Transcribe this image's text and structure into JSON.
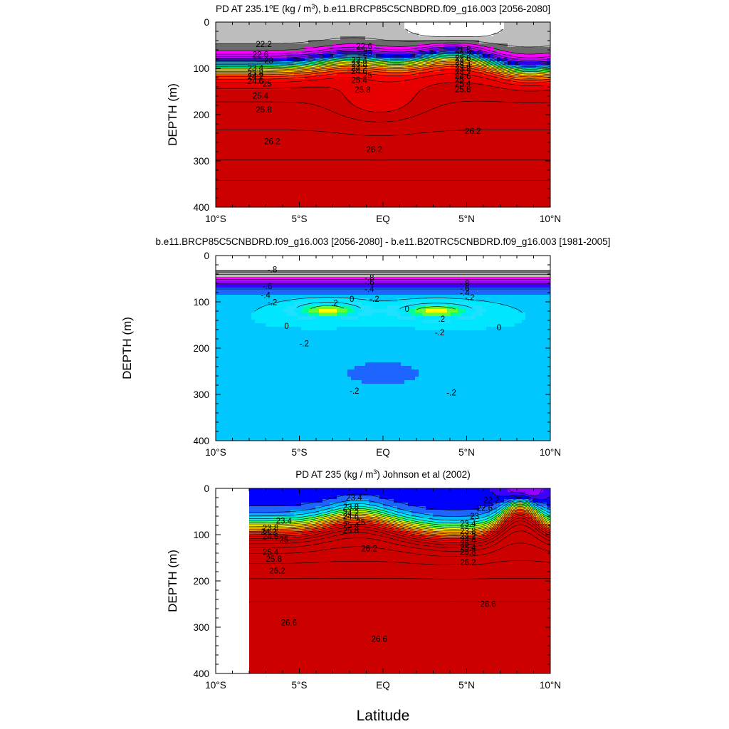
{
  "figure": {
    "xlabel": "Latitude",
    "x_ticks": [
      -10,
      -5,
      0,
      5,
      10
    ],
    "x_tick_labels": [
      "10°S",
      "5°S",
      "EQ",
      "5°N",
      "10°N"
    ],
    "y_ticks": [
      0,
      100,
      200,
      300,
      400
    ],
    "y_tick_labels": [
      "0",
      "100",
      "200",
      "300",
      "400"
    ]
  },
  "chart_data": [
    {
      "type": "heatmap",
      "subtype": "filled-contour",
      "title_prefix": "PD AT 235.1",
      "title_deg": "o",
      "title_mid": "E (kg / m",
      "title_sup": "3",
      "title_suffix": "), b.e11.BRCP85C5CNBDRD.f09_g16.003 [2056-2080]",
      "xlabel": "",
      "ylabel": "DEPTH (m)",
      "xlim": [
        -10,
        10
      ],
      "ylim": [
        400,
        0
      ],
      "contour_interval": 0.2,
      "field_range": [
        21.4,
        26.8
      ],
      "palette": [
        "#ffffff",
        "#bdbdbd",
        "#6b6b6b",
        "#ff00ff",
        "#cc00ff",
        "#9400ff",
        "#3c00ff",
        "#0000ff",
        "#1e64ff",
        "#00b4ff",
        "#00e6ff",
        "#00ffaa",
        "#46ff46",
        "#b4ff00",
        "#ffff00",
        "#ffd200",
        "#ffaa00",
        "#ff8200",
        "#ff5000",
        "#ff2800",
        "#ff0000",
        "#e60000",
        "#cd0000"
      ],
      "contour_labels": [
        {
          "text": "22.2",
          "lat": -7.6,
          "depth": 48
        },
        {
          "text": "22.6",
          "lat": -7.8,
          "depth": 70
        },
        {
          "text": "23",
          "lat": -7.1,
          "depth": 83
        },
        {
          "text": "23.4",
          "lat": -8.1,
          "depth": 99
        },
        {
          "text": "23.8",
          "lat": -8.1,
          "depth": 110
        },
        {
          "text": "24.2",
          "lat": -8.1,
          "depth": 118
        },
        {
          "text": "24.6",
          "lat": -8.1,
          "depth": 128
        },
        {
          "text": "25",
          "lat": -7.2,
          "depth": 133
        },
        {
          "text": "25.4",
          "lat": -7.8,
          "depth": 159
        },
        {
          "text": "25.8",
          "lat": -7.6,
          "depth": 189
        },
        {
          "text": "26.2",
          "lat": -7.1,
          "depth": 258
        },
        {
          "text": "22.6",
          "lat": -1.6,
          "depth": 52
        },
        {
          "text": "23",
          "lat": -1.2,
          "depth": 67
        },
        {
          "text": "23.4",
          "lat": -1.9,
          "depth": 82
        },
        {
          "text": "23.8",
          "lat": -1.9,
          "depth": 91
        },
        {
          "text": "24.2",
          "lat": -1.9,
          "depth": 99
        },
        {
          "text": "24.6",
          "lat": -1.9,
          "depth": 106
        },
        {
          "text": "25",
          "lat": -1.2,
          "depth": 115
        },
        {
          "text": "25.4",
          "lat": -1.9,
          "depth": 125
        },
        {
          "text": "25.8",
          "lat": -1.7,
          "depth": 146
        },
        {
          "text": "26.2",
          "lat": -1.0,
          "depth": 275
        },
        {
          "text": "21.8",
          "lat": 4.3,
          "depth": 59
        },
        {
          "text": "22.2",
          "lat": 4.3,
          "depth": 71
        },
        {
          "text": "22.6",
          "lat": 4.3,
          "depth": 78
        },
        {
          "text": "23",
          "lat": 4.3,
          "depth": 86
        },
        {
          "text": "23.4",
          "lat": 4.3,
          "depth": 93
        },
        {
          "text": "23.8",
          "lat": 4.3,
          "depth": 101
        },
        {
          "text": "24.2",
          "lat": 4.3,
          "depth": 109
        },
        {
          "text": "24.6",
          "lat": 4.3,
          "depth": 117
        },
        {
          "text": "25",
          "lat": 4.3,
          "depth": 124
        },
        {
          "text": "25.4",
          "lat": 4.3,
          "depth": 133
        },
        {
          "text": "25.8",
          "lat": 4.3,
          "depth": 145
        },
        {
          "text": "26.2",
          "lat": 4.9,
          "depth": 235
        }
      ]
    },
    {
      "type": "heatmap",
      "subtype": "filled-contour-difference",
      "title": "b.e11.BRCP85C5CNBDRD.f09_g16.003 [2056-2080] - b.e11.B20TRC5CNBDRD.f09_g16.003 [1981-2005]",
      "xlabel": "",
      "ylabel": "DEPTH (m)",
      "xlim": [
        -10,
        10
      ],
      "ylim": [
        400,
        0
      ],
      "contour_interval": 0.2,
      "field_range": [
        -1.2,
        0.4
      ],
      "palette": [
        "#00e6ff",
        "#00e6ff",
        "#00ff96",
        "#64ff32",
        "#ffff00",
        "#ffd200",
        "#ff9600"
      ],
      "palette_negative": [
        "#ffffff",
        "#6b6b6b",
        "#bdbdbd",
        "#ff00ff",
        "#cc00ff",
        "#9400ff",
        "#3c00ff",
        "#0000ff",
        "#1e64ff",
        "#00c8ff",
        "#00e6ff",
        "#1ee1ff"
      ],
      "contour_labels": [
        {
          "text": "-.8",
          "lat": -6.9,
          "depth": 30
        },
        {
          "text": "-.6",
          "lat": -7.2,
          "depth": 66
        },
        {
          "text": "-.4",
          "lat": -7.3,
          "depth": 85
        },
        {
          "text": "-.2",
          "lat": -6.9,
          "depth": 101
        },
        {
          "text": "0",
          "lat": -5.9,
          "depth": 152
        },
        {
          "text": ".2",
          "lat": -3.1,
          "depth": 102
        },
        {
          "text": "0",
          "lat": -2.0,
          "depth": 94
        },
        {
          "text": "-.2",
          "lat": -0.8,
          "depth": 94
        },
        {
          "text": "-.8",
          "lat": -1.1,
          "depth": 48
        },
        {
          "text": "-.6",
          "lat": -1.1,
          "depth": 58
        },
        {
          "text": "-.4",
          "lat": -1.1,
          "depth": 72
        },
        {
          "text": "-.2",
          "lat": -5.0,
          "depth": 190
        },
        {
          "text": "-.2",
          "lat": -2.0,
          "depth": 292
        },
        {
          "text": "0",
          "lat": 1.3,
          "depth": 115
        },
        {
          "text": ".2",
          "lat": 3.3,
          "depth": 137
        },
        {
          "text": "0",
          "lat": 6.8,
          "depth": 155
        },
        {
          "text": "-.8",
          "lat": 4.6,
          "depth": 60
        },
        {
          "text": "-.6",
          "lat": 4.6,
          "depth": 71
        },
        {
          "text": "-.4",
          "lat": 4.6,
          "depth": 81
        },
        {
          "text": "-.2",
          "lat": 4.9,
          "depth": 91
        },
        {
          "text": "-.2",
          "lat": 3.1,
          "depth": 166
        },
        {
          "text": "-.2",
          "lat": 3.8,
          "depth": 296
        }
      ]
    },
    {
      "type": "heatmap",
      "subtype": "filled-contour",
      "title_prefix": "PD AT 235 (kg / m",
      "title_sup": "3",
      "title_suffix": ") Johnson et al (2002)",
      "xlabel": "",
      "ylabel": "DEPTH (m)",
      "xlim": [
        -10,
        10
      ],
      "ylim": [
        400,
        0
      ],
      "data_lat_start": -8,
      "contour_interval": 0.2,
      "field_range": [
        21.4,
        26.8
      ],
      "palette": [
        "#ff00ff",
        "#cc00ff",
        "#9400ff",
        "#3c00ff",
        "#0000ff",
        "#1e64ff",
        "#00b4ff",
        "#00e6ff",
        "#00ffaa",
        "#46ff46",
        "#b4ff00",
        "#ffff00",
        "#ffd200",
        "#ffaa00",
        "#ff8200",
        "#ff5000",
        "#ff2800",
        "#ff0000",
        "#e60000",
        "#cd0000"
      ],
      "contour_labels": [
        {
          "text": "23.4",
          "lat": -6.4,
          "depth": 70
        },
        {
          "text": "23.8",
          "lat": -7.2,
          "depth": 85
        },
        {
          "text": "24.2",
          "lat": -7.3,
          "depth": 94
        },
        {
          "text": "24.6",
          "lat": -7.2,
          "depth": 104
        },
        {
          "text": "25",
          "lat": -6.2,
          "depth": 111
        },
        {
          "text": "25.4",
          "lat": -7.2,
          "depth": 138
        },
        {
          "text": "25.8",
          "lat": -7.0,
          "depth": 152
        },
        {
          "text": "26.2",
          "lat": -6.8,
          "depth": 178
        },
        {
          "text": "26.6",
          "lat": -6.1,
          "depth": 290
        },
        {
          "text": "23.4",
          "lat": -2.2,
          "depth": 20
        },
        {
          "text": "23.8",
          "lat": -2.4,
          "depth": 40
        },
        {
          "text": "24.2",
          "lat": -2.4,
          "depth": 53
        },
        {
          "text": "24.6",
          "lat": -2.4,
          "depth": 61
        },
        {
          "text": "25",
          "lat": -1.6,
          "depth": 73
        },
        {
          "text": "25.4",
          "lat": -2.4,
          "depth": 80
        },
        {
          "text": "25.8",
          "lat": -2.4,
          "depth": 91
        },
        {
          "text": "26.2",
          "lat": -1.3,
          "depth": 130
        },
        {
          "text": "26.6",
          "lat": -0.7,
          "depth": 325
        },
        {
          "text": "22.2",
          "lat": 6.0,
          "depth": 25
        },
        {
          "text": "22.6",
          "lat": 5.6,
          "depth": 42
        },
        {
          "text": "23",
          "lat": 5.2,
          "depth": 60
        },
        {
          "text": "23.4",
          "lat": 4.6,
          "depth": 76
        },
        {
          "text": "23.8",
          "lat": 4.6,
          "depth": 92
        },
        {
          "text": "24.2",
          "lat": 4.6,
          "depth": 103
        },
        {
          "text": "24.6",
          "lat": 4.6,
          "depth": 111
        },
        {
          "text": "25",
          "lat": 4.6,
          "depth": 119
        },
        {
          "text": "25.4",
          "lat": 4.6,
          "depth": 128
        },
        {
          "text": "25.8",
          "lat": 4.6,
          "depth": 138
        },
        {
          "text": "26.2",
          "lat": 4.6,
          "depth": 160
        },
        {
          "text": "26.6",
          "lat": 5.8,
          "depth": 250
        }
      ]
    }
  ]
}
